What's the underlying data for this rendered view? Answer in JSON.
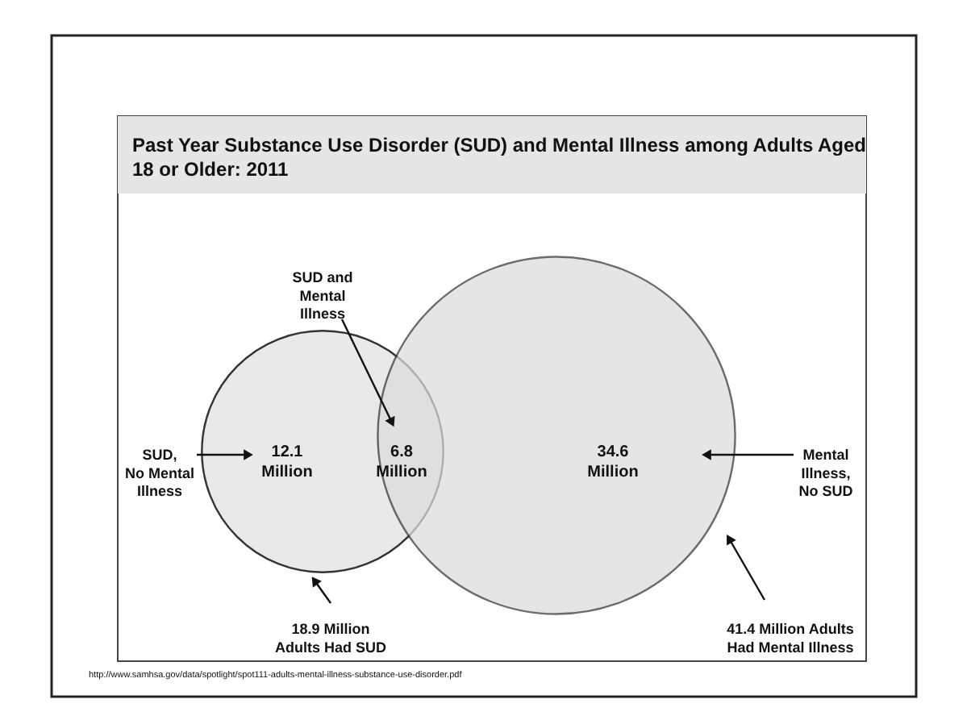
{
  "chart_data": {
    "type": "other",
    "title": "Past Year Substance Use Disorder (SUD) and Mental Illness among Adults Aged 18 or Older: 2011",
    "categories": [
      "SUD,\nNo Mental\nIllness",
      "SUD and\nMental\nIllness",
      "Mental\nIllness,\nNo SUD"
    ],
    "values": [
      12.1,
      6.8,
      34.6
    ],
    "value_labels": [
      "12.1\nMillion",
      "6.8\nMillion",
      "34.6\nMillion"
    ],
    "annotations": [
      "18.9 Million\nAdults Had SUD",
      "41.4 Million Adults\nHad Mental Illness",
      "http://www.samhsa.gov/data/spotlight/spot111-adults-mental-illness-substance-use-disorder.pdf"
    ]
  }
}
